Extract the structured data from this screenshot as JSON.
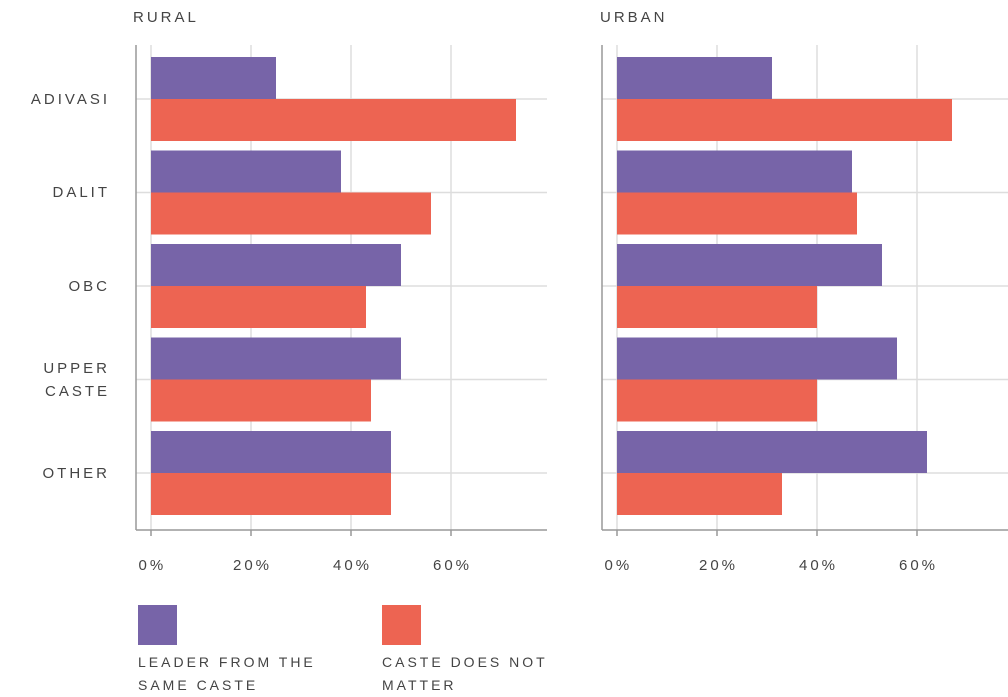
{
  "chart_data": [
    {
      "type": "bar",
      "orientation": "horizontal",
      "title": "RURAL",
      "categories": [
        "ADIVASI",
        "DALIT",
        "OBC",
        "UPPER CASTE",
        "OTHER"
      ],
      "series": [
        {
          "name": "LEADER FROM THE SAME CASTE",
          "color": "#7764a8",
          "values": [
            25,
            38,
            50,
            50,
            48
          ]
        },
        {
          "name": "CASTE DOES NOT MATTER",
          "color": "#ed6452",
          "values": [
            73,
            56,
            43,
            44,
            48
          ]
        }
      ],
      "xlim": [
        -3,
        80
      ],
      "xticks": [
        {
          "value": 0,
          "label": "0%"
        },
        {
          "value": 20,
          "label": "20%"
        },
        {
          "value": 40,
          "label": "40%"
        },
        {
          "value": 60,
          "label": "60%"
        }
      ],
      "grid": true
    },
    {
      "type": "bar",
      "orientation": "horizontal",
      "title": "URBAN",
      "categories": [
        "ADIVASI",
        "DALIT",
        "OBC",
        "UPPER CASTE",
        "OTHER"
      ],
      "series": [
        {
          "name": "LEADER FROM THE SAME CASTE",
          "color": "#7764a8",
          "values": [
            31,
            47,
            53,
            56,
            62
          ]
        },
        {
          "name": "CASTE DOES NOT MATTER",
          "color": "#ed6452",
          "values": [
            67,
            48,
            40,
            40,
            33
          ]
        }
      ],
      "xlim": [
        -3,
        80
      ],
      "xticks": [
        {
          "value": 0,
          "label": "0%"
        },
        {
          "value": 20,
          "label": "20%"
        },
        {
          "value": 40,
          "label": "40%"
        },
        {
          "value": 60,
          "label": "60%"
        }
      ],
      "grid": true
    }
  ]
}
